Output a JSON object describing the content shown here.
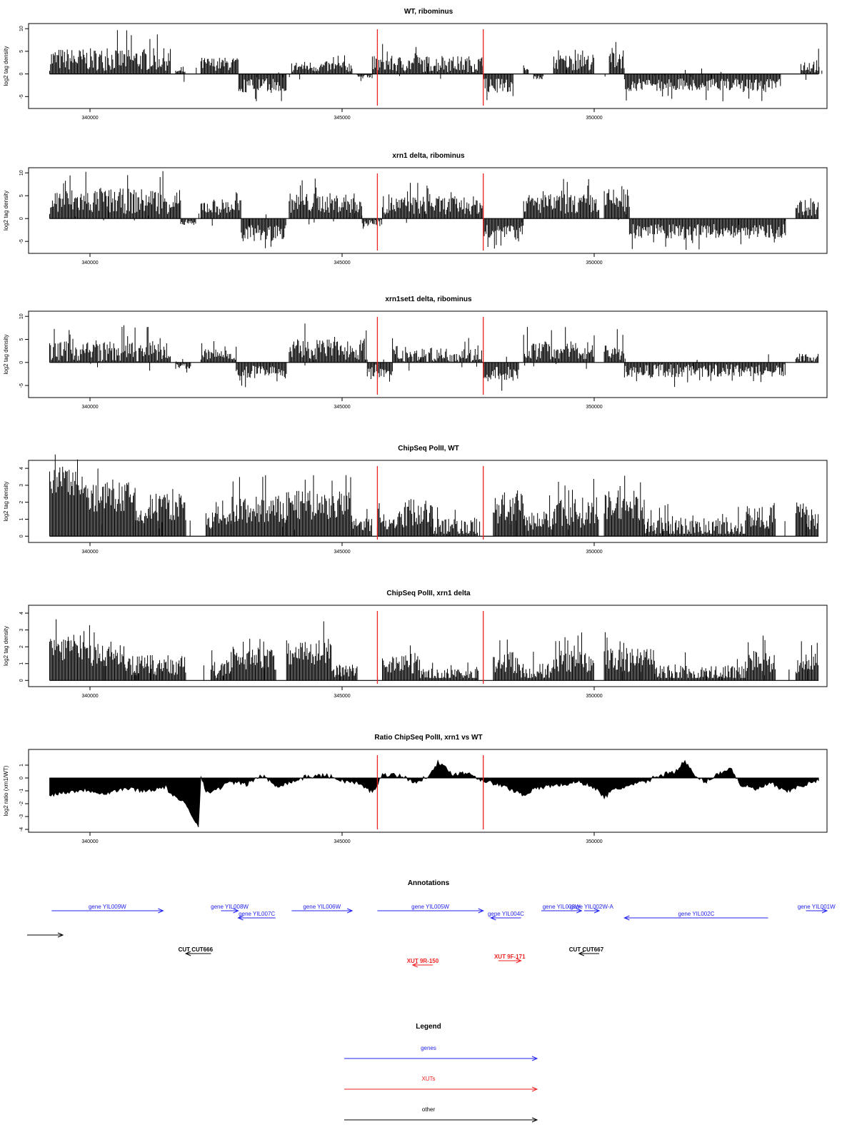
{
  "colors": {
    "gene": "#2222ee",
    "xut": "#ee2222",
    "other": "#000000",
    "marker": "#ee2222",
    "data": "#000000"
  },
  "chart_data": [
    {
      "type": "bar",
      "title": "WT, ribominus",
      "ylabel": "log2 tag density",
      "xlim": [
        338800,
        354800
      ],
      "ylim": [
        -7,
        10.5
      ],
      "yticks": [
        -5,
        0,
        5,
        10
      ],
      "xticks": [
        340000,
        345000,
        350000
      ],
      "markers": [
        345700,
        347800
      ],
      "regions": [
        {
          "range": [
            339200,
            341600
          ],
          "sign": 1,
          "level": 3.2,
          "var": 2.5
        },
        {
          "range": [
            341700,
            341900
          ],
          "sign": 1,
          "level": 0.6,
          "var": 0.4
        },
        {
          "range": [
            342200,
            342950
          ],
          "sign": 1,
          "level": 2.2,
          "var": 1.5
        },
        {
          "range": [
            342950,
            343900
          ],
          "sign": -1,
          "level": 2.6,
          "var": 1.6
        },
        {
          "range": [
            344000,
            345200
          ],
          "sign": 1,
          "level": 1.6,
          "var": 1.2
        },
        {
          "range": [
            345300,
            345600
          ],
          "sign": -1,
          "level": 0.6,
          "var": 0.4
        },
        {
          "range": [
            345600,
            347800
          ],
          "sign": 1,
          "level": 2.2,
          "var": 1.8
        },
        {
          "range": [
            347800,
            348400
          ],
          "sign": -1,
          "level": 2.6,
          "var": 1.6
        },
        {
          "range": [
            348600,
            348700
          ],
          "sign": 1,
          "level": 1.0,
          "var": 0.4
        },
        {
          "range": [
            348800,
            349000
          ],
          "sign": -1,
          "level": 0.8,
          "var": 0.4
        },
        {
          "range": [
            349200,
            350000
          ],
          "sign": 1,
          "level": 2.6,
          "var": 1.8
        },
        {
          "range": [
            350300,
            350600
          ],
          "sign": 1,
          "level": 3.5,
          "var": 2.5
        },
        {
          "range": [
            350600,
            353700
          ],
          "sign": -1,
          "level": 2.4,
          "var": 1.4
        },
        {
          "range": [
            354100,
            354450
          ],
          "sign": 1,
          "level": 1.8,
          "var": 1.5
        }
      ]
    },
    {
      "type": "bar",
      "title": "xrn1 delta, ribominus",
      "ylabel": "log2 tag density",
      "xlim": [
        338800,
        354800
      ],
      "ylim": [
        -7,
        10.5
      ],
      "yticks": [
        -5,
        0,
        5,
        10
      ],
      "xticks": [
        340000,
        345000,
        350000
      ],
      "markers": [
        345700,
        347800
      ],
      "regions": [
        {
          "range": [
            339200,
            341800
          ],
          "sign": 1,
          "level": 3.8,
          "var": 2.8
        },
        {
          "range": [
            341800,
            342100
          ],
          "sign": -1,
          "level": 0.8,
          "var": 0.6
        },
        {
          "range": [
            342200,
            343000
          ],
          "sign": 1,
          "level": 2.6,
          "var": 1.8
        },
        {
          "range": [
            343000,
            343900
          ],
          "sign": -1,
          "level": 3.2,
          "var": 1.8
        },
        {
          "range": [
            343950,
            345400
          ],
          "sign": 1,
          "level": 3.4,
          "var": 2.2
        },
        {
          "range": [
            345400,
            345800
          ],
          "sign": -1,
          "level": 1.0,
          "var": 0.8
        },
        {
          "range": [
            345800,
            347800
          ],
          "sign": 1,
          "level": 2.9,
          "var": 2.0
        },
        {
          "range": [
            347800,
            348600
          ],
          "sign": -1,
          "level": 3.2,
          "var": 1.8
        },
        {
          "range": [
            348600,
            350100
          ],
          "sign": 1,
          "level": 3.2,
          "var": 2.2
        },
        {
          "range": [
            350200,
            350700
          ],
          "sign": 1,
          "level": 3.8,
          "var": 2.8
        },
        {
          "range": [
            350700,
            353800
          ],
          "sign": -1,
          "level": 2.8,
          "var": 1.6
        },
        {
          "range": [
            354000,
            354450
          ],
          "sign": 1,
          "level": 2.4,
          "var": 1.8
        }
      ]
    },
    {
      "type": "bar",
      "title": "xrn1set1 delta, ribominus",
      "ylabel": "log2 tag density",
      "xlim": [
        338800,
        354800
      ],
      "ylim": [
        -7,
        10.5
      ],
      "yticks": [
        -5,
        0,
        5,
        10
      ],
      "xticks": [
        340000,
        345000,
        350000
      ],
      "markers": [
        345700,
        347800
      ],
      "regions": [
        {
          "range": [
            339200,
            341600
          ],
          "sign": 1,
          "level": 2.4,
          "var": 2.2
        },
        {
          "range": [
            341700,
            342000
          ],
          "sign": -1,
          "level": 0.8,
          "var": 0.6
        },
        {
          "range": [
            342200,
            342900
          ],
          "sign": 1,
          "level": 1.7,
          "var": 1.3
        },
        {
          "range": [
            342900,
            343900
          ],
          "sign": -1,
          "level": 2.0,
          "var": 1.4
        },
        {
          "range": [
            343950,
            345500
          ],
          "sign": 1,
          "level": 2.8,
          "var": 2.2
        },
        {
          "range": [
            345500,
            346000
          ],
          "sign": -1,
          "level": 1.8,
          "var": 1.4
        },
        {
          "range": [
            346000,
            347800
          ],
          "sign": 1,
          "level": 1.6,
          "var": 1.6
        },
        {
          "range": [
            347800,
            348500
          ],
          "sign": -1,
          "level": 2.4,
          "var": 1.6
        },
        {
          "range": [
            348600,
            350000
          ],
          "sign": 1,
          "level": 2.6,
          "var": 2.0
        },
        {
          "range": [
            350200,
            350600
          ],
          "sign": 1,
          "level": 2.4,
          "var": 2.0
        },
        {
          "range": [
            350600,
            353800
          ],
          "sign": -1,
          "level": 1.8,
          "var": 1.4
        },
        {
          "range": [
            354000,
            354450
          ],
          "sign": 1,
          "level": 1.2,
          "var": 1.2
        }
      ]
    },
    {
      "type": "bar",
      "title": "ChipSeq PolII, WT",
      "ylabel": "log2 tag density",
      "xlim": [
        338800,
        354800
      ],
      "ylim": [
        -0.2,
        4.3
      ],
      "yticks": [
        0,
        1,
        2,
        3,
        4
      ],
      "xticks": [
        340000,
        345000,
        350000
      ],
      "markers": [
        345700,
        347800
      ],
      "regions": [
        {
          "range": [
            339200,
            339900
          ],
          "sign": 1,
          "level": 3.2,
          "var": 0.8
        },
        {
          "range": [
            339900,
            340900
          ],
          "sign": 1,
          "level": 2.3,
          "var": 0.9
        },
        {
          "range": [
            340900,
            341200
          ],
          "sign": 1,
          "level": 1.2,
          "var": 0.6
        },
        {
          "range": [
            341200,
            341900
          ],
          "sign": 1,
          "level": 1.7,
          "var": 0.9
        },
        {
          "range": [
            342300,
            342800
          ],
          "sign": 1,
          "level": 0.9,
          "var": 0.5
        },
        {
          "range": [
            342800,
            343900
          ],
          "sign": 1,
          "level": 1.5,
          "var": 0.9
        },
        {
          "range": [
            343900,
            345200
          ],
          "sign": 1,
          "level": 1.8,
          "var": 0.9
        },
        {
          "range": [
            345200,
            345600
          ],
          "sign": 1,
          "level": 0.7,
          "var": 0.4
        },
        {
          "range": [
            345700,
            346200
          ],
          "sign": 1,
          "level": 0.9,
          "var": 0.5
        },
        {
          "range": [
            346200,
            346800
          ],
          "sign": 1,
          "level": 1.4,
          "var": 0.9
        },
        {
          "range": [
            346800,
            347700
          ],
          "sign": 1,
          "level": 0.5,
          "var": 0.6
        },
        {
          "range": [
            348000,
            348600
          ],
          "sign": 1,
          "level": 1.7,
          "var": 1.0
        },
        {
          "range": [
            348600,
            349200
          ],
          "sign": 1,
          "level": 0.9,
          "var": 0.6
        },
        {
          "range": [
            349200,
            350100
          ],
          "sign": 1,
          "level": 1.4,
          "var": 0.9
        },
        {
          "range": [
            350200,
            351000
          ],
          "sign": 1,
          "level": 1.8,
          "var": 0.9
        },
        {
          "range": [
            351000,
            353000
          ],
          "sign": 1,
          "level": 0.5,
          "var": 0.6
        },
        {
          "range": [
            353000,
            353600
          ],
          "sign": 1,
          "level": 1.2,
          "var": 0.8
        },
        {
          "range": [
            354000,
            354450
          ],
          "sign": 1,
          "level": 1.2,
          "var": 0.8
        }
      ]
    },
    {
      "type": "bar",
      "title": "ChipSeq PolII, xrn1 delta",
      "ylabel": "log2 tag density",
      "xlim": [
        338800,
        354800
      ],
      "ylim": [
        -0.2,
        4.3
      ],
      "yticks": [
        0,
        1,
        2,
        3,
        4
      ],
      "xticks": [
        340000,
        345000,
        350000
      ],
      "markers": [
        345700,
        347800
      ],
      "regions": [
        {
          "range": [
            339200,
            339900
          ],
          "sign": 1,
          "level": 2.0,
          "var": 0.8
        },
        {
          "range": [
            339900,
            340700
          ],
          "sign": 1,
          "level": 1.5,
          "var": 0.7
        },
        {
          "range": [
            340700,
            341900
          ],
          "sign": 1,
          "level": 0.9,
          "var": 0.6
        },
        {
          "range": [
            342400,
            342800
          ],
          "sign": 1,
          "level": 0.6,
          "var": 0.5
        },
        {
          "range": [
            342800,
            343700
          ],
          "sign": 1,
          "level": 1.3,
          "var": 0.7
        },
        {
          "range": [
            343900,
            344800
          ],
          "sign": 1,
          "level": 1.7,
          "var": 0.8
        },
        {
          "range": [
            344800,
            345300
          ],
          "sign": 1,
          "level": 0.6,
          "var": 0.4
        },
        {
          "range": [
            345800,
            346500
          ],
          "sign": 1,
          "level": 1.0,
          "var": 0.6
        },
        {
          "range": [
            346500,
            347700
          ],
          "sign": 1,
          "level": 0.3,
          "var": 0.4
        },
        {
          "range": [
            348000,
            348500
          ],
          "sign": 1,
          "level": 1.1,
          "var": 0.7
        },
        {
          "range": [
            348500,
            349200
          ],
          "sign": 1,
          "level": 0.5,
          "var": 0.5
        },
        {
          "range": [
            349200,
            350000
          ],
          "sign": 1,
          "level": 1.1,
          "var": 0.7
        },
        {
          "range": [
            350200,
            351200
          ],
          "sign": 1,
          "level": 1.2,
          "var": 0.7
        },
        {
          "range": [
            351200,
            353000
          ],
          "sign": 1,
          "level": 0.4,
          "var": 0.5
        },
        {
          "range": [
            353000,
            353600
          ],
          "sign": 1,
          "level": 1.2,
          "var": 0.7
        },
        {
          "range": [
            354000,
            354450
          ],
          "sign": 1,
          "level": 1.0,
          "var": 0.6
        }
      ]
    },
    {
      "type": "area",
      "title": "Ratio ChipSeq PolII, xrn1 vs WT",
      "ylabel": "log2 ratio (xrn1/WT)",
      "xlim": [
        338800,
        354800
      ],
      "ylim": [
        -4,
        2
      ],
      "yticks": [
        -4,
        -3,
        -2,
        -1,
        0,
        1
      ],
      "xticks": [
        340000,
        345000,
        350000
      ],
      "markers": [
        345700,
        347800
      ],
      "x": [
        339200,
        339500,
        339900,
        340300,
        340700,
        341100,
        341500,
        341700,
        341900,
        342150,
        342200,
        342300,
        342500,
        342800,
        343100,
        343400,
        343700,
        344000,
        344300,
        344700,
        345000,
        345300,
        345600,
        345800,
        346000,
        346200,
        346500,
        346700,
        346900,
        347200,
        347500,
        347800,
        348000,
        348300,
        348600,
        348800,
        349100,
        349400,
        349700,
        350000,
        350200,
        350400,
        350700,
        351000,
        351300,
        351600,
        351800,
        352000,
        352200,
        352500,
        352700,
        352900,
        353200,
        353500,
        353800,
        354100,
        354450
      ],
      "y": [
        -1.3,
        -1.1,
        -0.9,
        -1.2,
        -0.8,
        -1.0,
        -0.7,
        -1.6,
        -2.0,
        -3.8,
        0.3,
        -1.2,
        -0.9,
        -0.3,
        -0.5,
        0.2,
        -0.6,
        -0.3,
        0.1,
        0.2,
        -0.2,
        -0.4,
        -1.1,
        0.2,
        0.3,
        0.1,
        -0.4,
        0.2,
        1.2,
        0.3,
        0.4,
        -0.2,
        -0.4,
        -0.8,
        -1.3,
        -0.9,
        -0.6,
        -0.5,
        -0.3,
        -0.7,
        -1.5,
        -0.9,
        -0.6,
        -0.3,
        0.2,
        0.5,
        1.3,
        0.1,
        -0.3,
        0.4,
        0.8,
        -0.5,
        -0.9,
        -0.4,
        -1.1,
        -0.6,
        -0.2
      ]
    }
  ],
  "annotations": {
    "title": "Annotations",
    "features": [
      {
        "label": "gene YIL009W",
        "kind": "gene",
        "start": 339240,
        "end": 341450,
        "row": 0,
        "dir": "right"
      },
      {
        "label": "gene YIL008W",
        "kind": "gene",
        "start": 342600,
        "end": 342940,
        "row": 0,
        "dir": "right"
      },
      {
        "label": "gene YIL007C",
        "kind": "gene",
        "start": 342940,
        "end": 343680,
        "row": 1,
        "dir": "left"
      },
      {
        "label": "gene YIL006W",
        "kind": "gene",
        "start": 344000,
        "end": 345200,
        "row": 0,
        "dir": "right"
      },
      {
        "label": "gene YIL005W",
        "kind": "gene",
        "start": 345700,
        "end": 347800,
        "row": 0,
        "dir": "right"
      },
      {
        "label": "gene YIL004C",
        "kind": "gene",
        "start": 347950,
        "end": 348550,
        "row": 1,
        "dir": "left"
      },
      {
        "label": "gene YIL003W",
        "kind": "gene",
        "start": 348950,
        "end": 349750,
        "row": 0,
        "dir": "right"
      },
      {
        "label": "gene YIL002W-A",
        "kind": "gene",
        "start": 349800,
        "end": 350100,
        "row": 0,
        "dir": "right"
      },
      {
        "label": "gene YIL002C",
        "kind": "gene",
        "start": 350600,
        "end": 353450,
        "row": 1,
        "dir": "left"
      },
      {
        "label": "gene YIL001W",
        "kind": "gene",
        "start": 354200,
        "end": 354800,
        "row": 0,
        "dir": "right"
      },
      {
        "label": "CUT CUT666",
        "kind": "other",
        "start": 341900,
        "end": 342400,
        "row": 3,
        "dir": "left"
      },
      {
        "label": "CUT CUT667",
        "kind": "other",
        "start": 349700,
        "end": 350100,
        "row": 3,
        "dir": "left"
      },
      {
        "label": "XUT 9R-150",
        "kind": "xut",
        "start": 346400,
        "end": 346800,
        "row": 4,
        "dir": "left"
      },
      {
        "label": "XUT 9F-171",
        "kind": "xut",
        "start": 348100,
        "end": 348550,
        "row": 3.6,
        "dir": "right"
      }
    ],
    "edge_arrow": {
      "kind": "other",
      "dir": "right"
    }
  },
  "legend": {
    "title": "Legend",
    "items": [
      {
        "label": "genes",
        "kind": "gene"
      },
      {
        "label": "XUTs",
        "kind": "xut"
      },
      {
        "label": "other",
        "kind": "other"
      }
    ]
  }
}
